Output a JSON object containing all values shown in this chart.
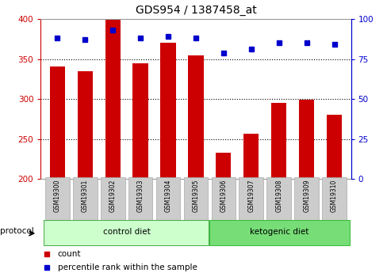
{
  "title": "GDS954 / 1387458_at",
  "samples": [
    "GSM19300",
    "GSM19301",
    "GSM19302",
    "GSM19303",
    "GSM19304",
    "GSM19305",
    "GSM19306",
    "GSM19307",
    "GSM19308",
    "GSM19309",
    "GSM19310"
  ],
  "counts": [
    341,
    335,
    400,
    345,
    370,
    355,
    233,
    256,
    295,
    299,
    280
  ],
  "percentile_ranks": [
    88,
    87,
    93,
    88,
    89,
    88,
    79,
    81,
    85,
    85,
    84
  ],
  "group_labels": [
    "control diet",
    "ketogenic diet"
  ],
  "group_colors": [
    "#ccffcc",
    "#77dd77"
  ],
  "ctrl_count": 6,
  "bar_color": "#cc0000",
  "dot_color": "#0000cc",
  "ylim_left": [
    200,
    400
  ],
  "ylim_right": [
    0,
    100
  ],
  "yticks_left": [
    200,
    250,
    300,
    350,
    400
  ],
  "yticks_right": [
    0,
    25,
    50,
    75,
    100
  ],
  "grid_ticks": [
    250,
    300,
    350
  ],
  "left_axis_color": "#cc0000",
  "right_axis_color": "#0000cc",
  "tick_label_bg": "#cccccc",
  "legend_count_label": "count",
  "legend_pct_label": "percentile rank within the sample",
  "protocol_label": "protocol"
}
